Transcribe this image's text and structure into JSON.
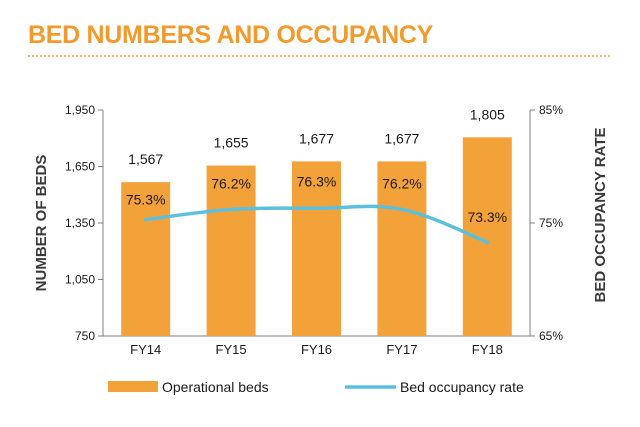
{
  "header": {
    "title": "BED NUMBERS AND OCCUPANCY"
  },
  "colors": {
    "title": "#f39a2c",
    "bar": "#f3a23a",
    "line": "#5bc0de",
    "axis": "#7f7f7f"
  },
  "chart_data": {
    "type": "bar+line",
    "categories": [
      "FY14",
      "FY15",
      "FY16",
      "FY17",
      "FY18"
    ],
    "series": [
      {
        "name": "Operational beds",
        "type": "bar",
        "axis": "left",
        "values": [
          1567,
          1655,
          1677,
          1677,
          1805
        ],
        "labels": [
          "1,567",
          "1,655",
          "1,677",
          "1,677",
          "1,805"
        ]
      },
      {
        "name": "Bed occupancy rate",
        "type": "line",
        "axis": "right",
        "values": [
          75.3,
          76.2,
          76.3,
          76.2,
          73.3
        ],
        "labels": [
          "75.3%",
          "76.2%",
          "76.3%",
          "76.2%",
          "73.3%"
        ]
      }
    ],
    "y_left": {
      "label": "NUMBER OF BEDS",
      "min": 750,
      "max": 1950,
      "ticks": [
        750,
        1050,
        1350,
        1650,
        1950
      ],
      "tick_labels": [
        "750",
        "1,050",
        "1,350",
        "1,650",
        "1,950"
      ]
    },
    "y_right": {
      "label": "BED OCCUPANCY RATE",
      "min": 65,
      "max": 85,
      "ticks": [
        65,
        75,
        85
      ],
      "tick_labels": [
        "65%",
        "75%",
        "85%"
      ]
    },
    "legend": {
      "position": "bottom"
    },
    "grid": false
  }
}
